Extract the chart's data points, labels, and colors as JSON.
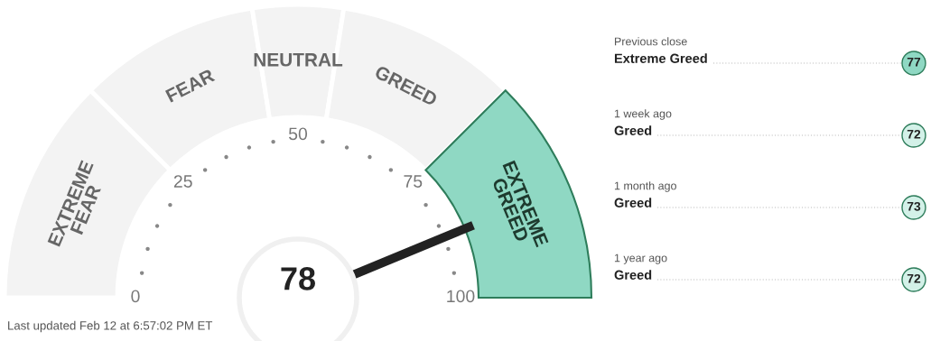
{
  "chart_data": [
    {
      "type": "donut",
      "categories": [
        "EXTREME\nFEAR",
        "FEAR",
        "NEUTRAL",
        "GREED",
        "EXTREME\nGREED"
      ],
      "values": [
        25,
        20,
        10,
        20,
        25
      ],
      "colors": [
        "#f3f3f3",
        "#f3f3f3",
        "#f3f3f3",
        "#f3f3f3",
        "#8fd8c3"
      ],
      "needle": "EXTREME\nGREED",
      "annotations": [
        "78",
        "0",
        "25",
        "50",
        "75",
        "100",
        "Last updated Feb 12 at 6:57:02 PM ET"
      ]
    },
    {
      "type": "other",
      "categories": [
        "Previous close",
        "1 week ago",
        "1 month ago",
        "1 year ago"
      ],
      "values": [
        77,
        72,
        73,
        72
      ],
      "data_labels": true,
      "colors": [
        "#8fd8c3",
        "#d3f1e8",
        "#d3f1e8",
        "#d3f1e8"
      ],
      "annotations": [
        "Extreme Greed",
        "Greed",
        "Greed",
        "Greed"
      ]
    }
  ]
}
